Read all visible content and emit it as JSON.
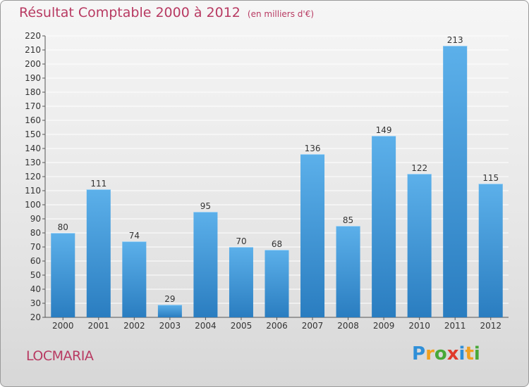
{
  "title": "Résultat Comptable 2000 à 2012",
  "unit": "(en milliers d'€)",
  "town": "LOCMARIA",
  "logo": {
    "text": "Proxiti",
    "letters": [
      {
        "ch": "P",
        "color": "#2f8fd8"
      },
      {
        "ch": "r",
        "color": "#f0a020"
      },
      {
        "ch": "o",
        "color": "#48a838"
      },
      {
        "ch": "x",
        "color": "#e03a2a"
      },
      {
        "ch": "i",
        "color": "#2f8fd8"
      },
      {
        "ch": "t",
        "color": "#f0a020"
      },
      {
        "ch": "i",
        "color": "#48a838"
      }
    ]
  },
  "colors": {
    "title": "#b83a62",
    "bar_top": "#5cb0ea",
    "bar_bottom": "#2a7dc0",
    "grid": "#ffffff",
    "axis": "#555555"
  },
  "chart_data": {
    "type": "bar",
    "title": "Résultat Comptable 2000 à 2012",
    "subtitle": "(en milliers d'€)",
    "xlabel": "",
    "ylabel": "",
    "categories": [
      "2000",
      "2001",
      "2002",
      "2003",
      "2004",
      "2005",
      "2006",
      "2007",
      "2008",
      "2009",
      "2010",
      "2011",
      "2012"
    ],
    "values": [
      80,
      111,
      74,
      29,
      95,
      70,
      68,
      136,
      85,
      149,
      122,
      213,
      115
    ],
    "ylim": [
      20,
      220
    ],
    "ytick_step": 10,
    "grid": true,
    "data_labels": true
  }
}
